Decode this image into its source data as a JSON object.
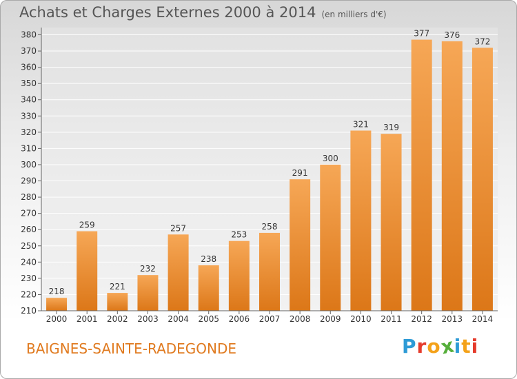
{
  "header": {
    "title": "Achats et Charges Externes 2000 à 2014",
    "subtitle": "(en milliers d'€)"
  },
  "footer": {
    "commune": "BAIGNES-SAINTE-RADEGONDE"
  },
  "logo": {
    "text": "Proxiti",
    "letters": [
      "P",
      "r",
      "o",
      "x",
      "i",
      "t",
      "i"
    ],
    "letter_colors": [
      "#2e9bd6",
      "#e53b2c",
      "#f4a21a",
      "#55ae3a",
      "#2e9bd6",
      "#f4a21a",
      "#e53b2c"
    ]
  },
  "colors": {
    "bar_top": "#f6a756",
    "bar_bottom": "#dc7718",
    "grid": "#ffffff",
    "axis": "#666666",
    "text": "#333333"
  },
  "chart_data": {
    "type": "bar",
    "title": "Achats et Charges Externes 2000 à 2014",
    "subtitle": "(en milliers d'€)",
    "categories": [
      "2000",
      "2001",
      "2002",
      "2003",
      "2004",
      "2005",
      "2006",
      "2007",
      "2008",
      "2009",
      "2010",
      "2011",
      "2012",
      "2013",
      "2014"
    ],
    "values": [
      218,
      259,
      221,
      232,
      257,
      238,
      253,
      258,
      291,
      300,
      321,
      319,
      377,
      376,
      372
    ],
    "ylim": [
      210,
      380
    ],
    "ytick_step": 10,
    "grid": true,
    "data_labels": true
  }
}
